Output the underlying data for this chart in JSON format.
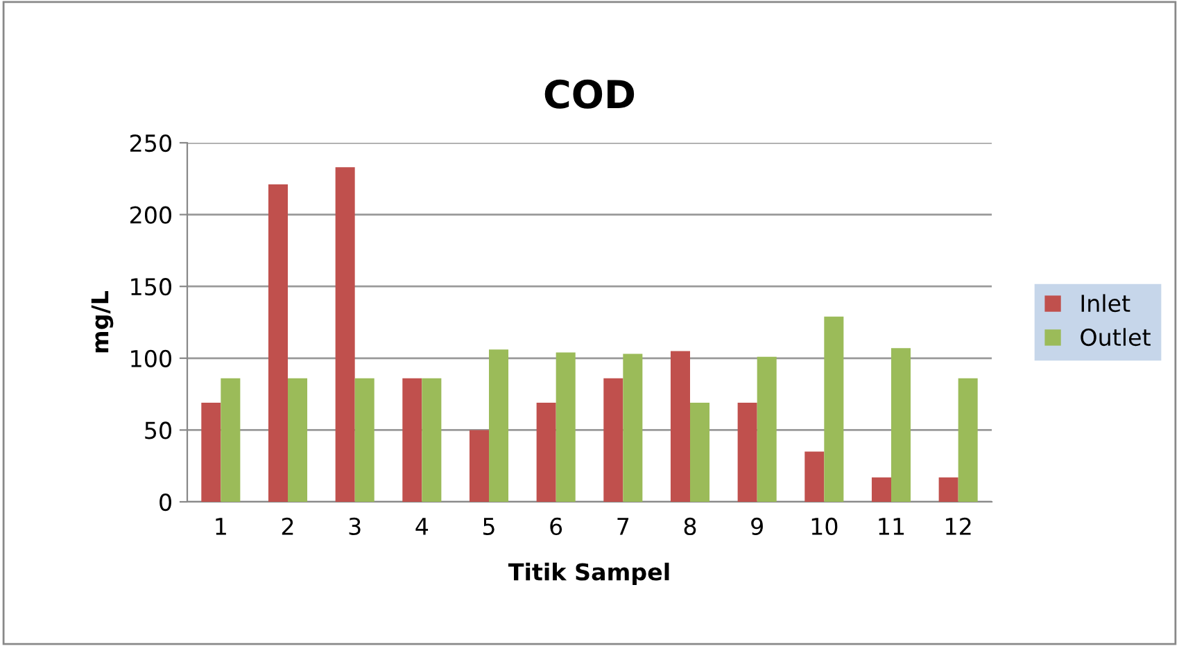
{
  "chart_data": {
    "type": "bar",
    "title": "COD",
    "xlabel": "Titik Sampel",
    "ylabel": "mg/L",
    "categories": [
      "1",
      "2",
      "3",
      "4",
      "5",
      "6",
      "7",
      "8",
      "9",
      "10",
      "11",
      "12"
    ],
    "series": [
      {
        "name": "Inlet",
        "color": "#c0504d",
        "values": [
          69,
          221,
          233,
          86,
          50,
          69,
          86,
          105,
          69,
          35,
          17,
          17
        ]
      },
      {
        "name": "Outlet",
        "color": "#9bbb59",
        "values": [
          86,
          86,
          86,
          86,
          106,
          104,
          103,
          69,
          101,
          129,
          107,
          86
        ]
      }
    ],
    "ylim": [
      0,
      250
    ],
    "yticks": [
      0,
      50,
      100,
      150,
      200,
      250
    ],
    "grid": "y",
    "legend": "right"
  }
}
